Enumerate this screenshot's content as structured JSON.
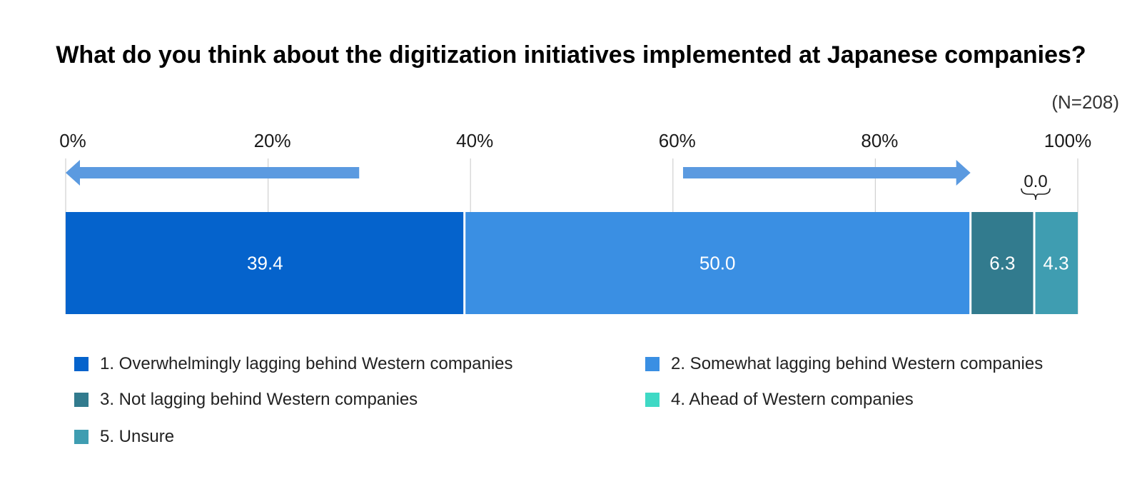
{
  "chart_data": {
    "type": "bar",
    "orientation": "horizontal",
    "stacked": true,
    "title": "What do you think about the digitization initiatives implemented at Japanese companies?",
    "sample_size": "(N=208)",
    "xlim": [
      0,
      100
    ],
    "x_ticks": [
      0,
      20,
      40,
      60,
      80,
      100
    ],
    "x_tick_labels": [
      "0%",
      "20%",
      "40%",
      "60%",
      "80%",
      "100%"
    ],
    "grid": true,
    "arrows": [
      {
        "direction": "left",
        "from": 29,
        "to": 0
      },
      {
        "direction": "right",
        "from": 61,
        "to": 89.4
      }
    ],
    "series": [
      {
        "name": "1. Overwhelmingly lagging behind Western companies",
        "value": 39.4,
        "label": "39.4",
        "color": "#0563cc"
      },
      {
        "name": "2. Somewhat lagging behind Western companies",
        "value": 50.0,
        "label": "50.0",
        "color": "#3a8fe3"
      },
      {
        "name": "3. Not lagging behind Western companies",
        "value": 6.3,
        "label": "6.3",
        "color": "#327b8e"
      },
      {
        "name": "4. Ahead of Western companies",
        "value": 0.0,
        "label": "0.0",
        "color": "#3fd9c5"
      },
      {
        "name": "5. Unsure",
        "value": 4.3,
        "label": "4.3",
        "color": "#3f9db1"
      }
    ],
    "legend_position": "bottom"
  }
}
